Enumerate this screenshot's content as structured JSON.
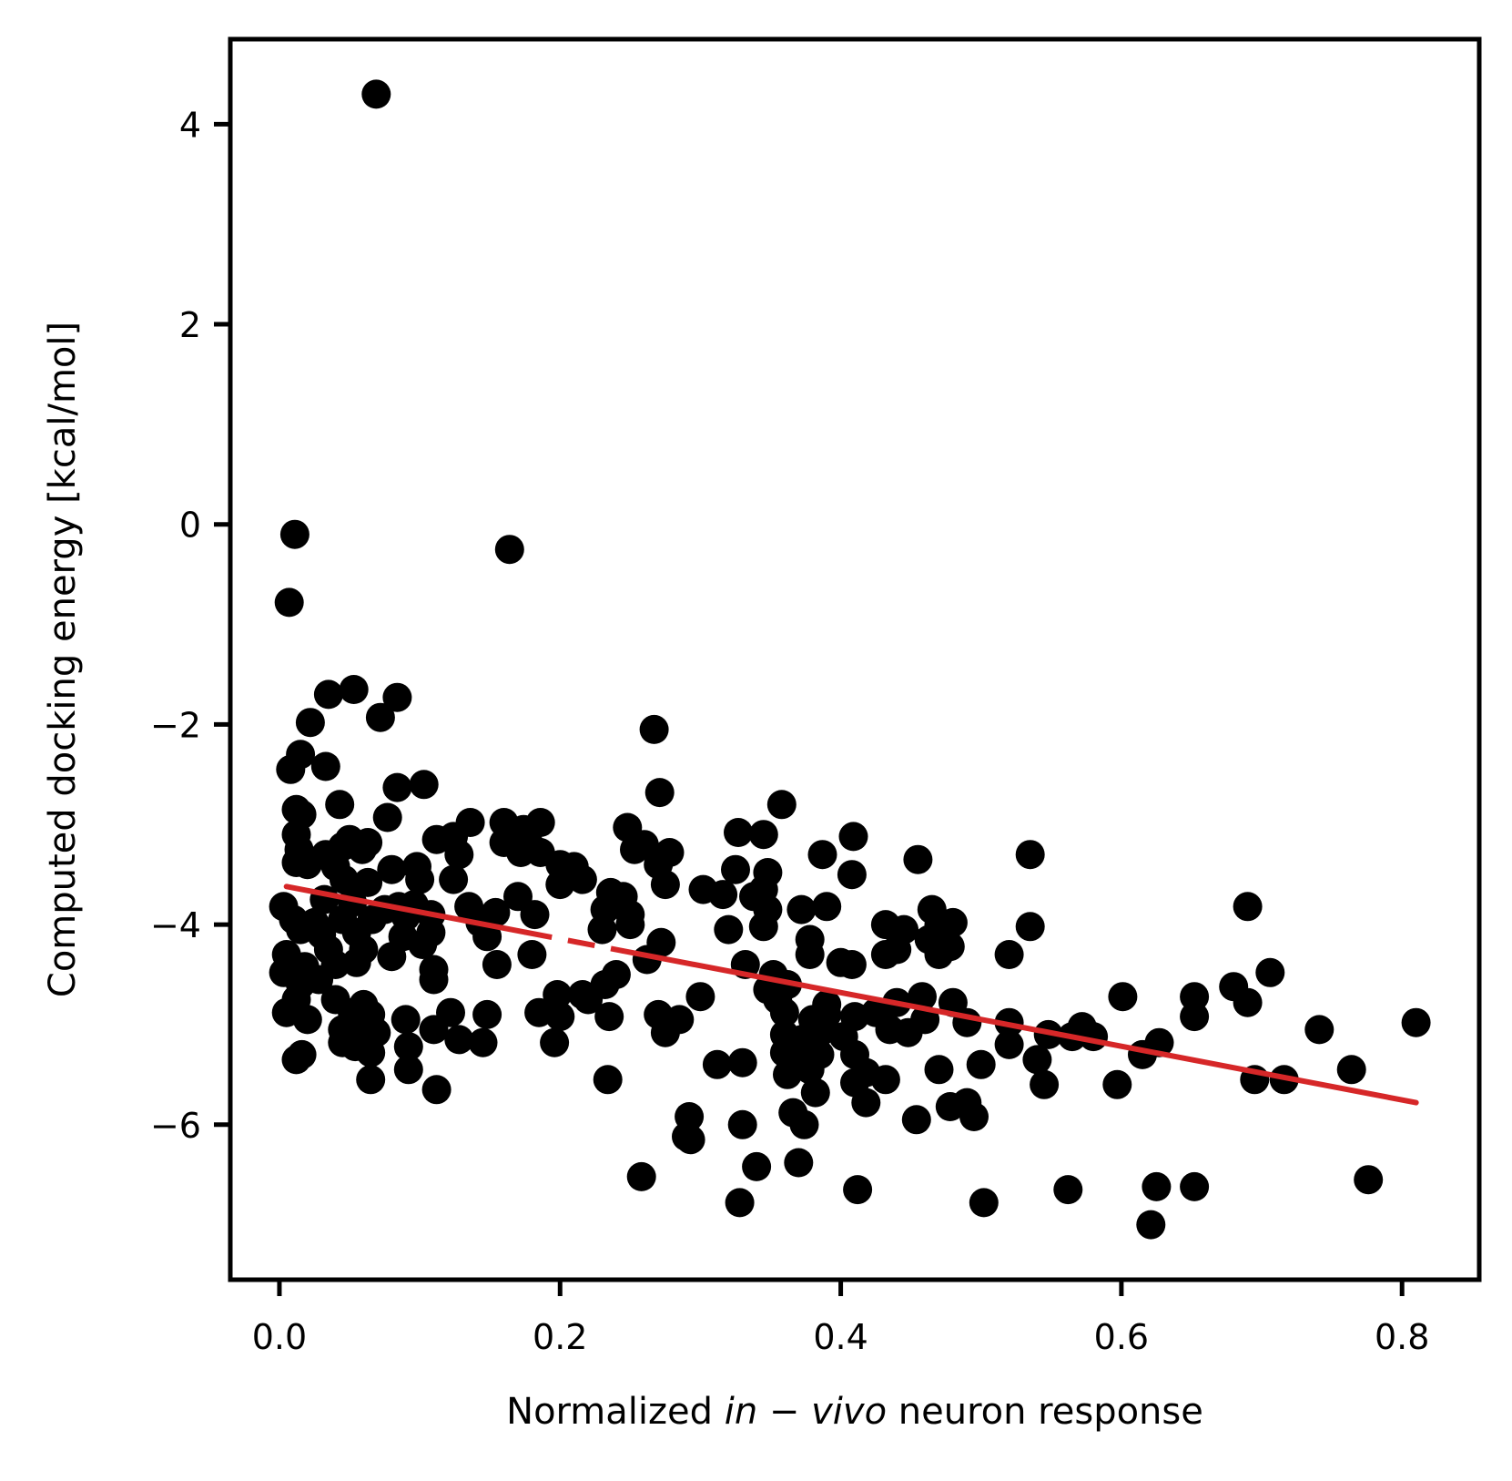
{
  "chart_data": {
    "type": "scatter",
    "xlabel": {
      "prefix": "Normalized ",
      "italic": "in − vivo",
      "suffix": " neuron response"
    },
    "ylabel": "Computed docking energy [kcal/mol]",
    "xlim": [
      -0.035,
      0.855
    ],
    "ylim": [
      -7.55,
      4.85
    ],
    "xticks": [
      0.0,
      0.2,
      0.4,
      0.6,
      0.8
    ],
    "xtick_labels": [
      "0.0",
      "0.2",
      "0.4",
      "0.6",
      "0.8"
    ],
    "yticks": [
      4,
      2,
      0,
      -2,
      -4,
      -6
    ],
    "ytick_labels": [
      "4",
      "2",
      "0",
      "−2",
      "−4",
      "−6"
    ],
    "grid": false,
    "legend": "none",
    "colors": {
      "points": "#000000",
      "trend": "#d62728"
    },
    "trend_line": {
      "x_start": 0.005,
      "y_start": -3.62,
      "x_end": 0.81,
      "y_end": -5.78,
      "dashed_x_range": [
        0.175,
        0.245
      ]
    },
    "points": [
      [
        0.069,
        4.3
      ],
      [
        0.011,
        -0.1
      ],
      [
        0.164,
        -0.25
      ],
      [
        0.007,
        -0.78
      ],
      [
        0.035,
        -1.7
      ],
      [
        0.053,
        -1.65
      ],
      [
        0.084,
        -1.73
      ],
      [
        0.072,
        -1.93
      ],
      [
        0.022,
        -1.98
      ],
      [
        0.267,
        -2.05
      ],
      [
        0.015,
        -2.3
      ],
      [
        0.033,
        -2.42
      ],
      [
        0.008,
        -2.45
      ],
      [
        0.084,
        -2.63
      ],
      [
        0.103,
        -2.6
      ],
      [
        0.271,
        -2.68
      ],
      [
        0.043,
        -2.8
      ],
      [
        0.012,
        -2.85
      ],
      [
        0.016,
        -2.9
      ],
      [
        0.077,
        -2.93
      ],
      [
        0.136,
        -2.98
      ],
      [
        0.16,
        -2.98
      ],
      [
        0.186,
        -2.98
      ],
      [
        0.174,
        -3.05
      ],
      [
        0.248,
        -3.03
      ],
      [
        0.327,
        -3.08
      ],
      [
        0.345,
        -3.1
      ],
      [
        0.409,
        -3.12
      ],
      [
        0.358,
        -2.8
      ],
      [
        0.012,
        -3.1
      ],
      [
        0.05,
        -3.15
      ],
      [
        0.063,
        -3.18
      ],
      [
        0.112,
        -3.15
      ],
      [
        0.124,
        -3.12
      ],
      [
        0.16,
        -3.18
      ],
      [
        0.178,
        -3.2
      ],
      [
        0.26,
        -3.2
      ],
      [
        0.014,
        -3.25
      ],
      [
        0.033,
        -3.3
      ],
      [
        0.045,
        -3.22
      ],
      [
        0.059,
        -3.25
      ],
      [
        0.128,
        -3.3
      ],
      [
        0.172,
        -3.28
      ],
      [
        0.186,
        -3.28
      ],
      [
        0.253,
        -3.25
      ],
      [
        0.278,
        -3.28
      ],
      [
        0.387,
        -3.3
      ],
      [
        0.455,
        -3.35
      ],
      [
        0.535,
        -3.3
      ],
      [
        0.012,
        -3.38
      ],
      [
        0.02,
        -3.4
      ],
      [
        0.04,
        -3.42
      ],
      [
        0.08,
        -3.45
      ],
      [
        0.098,
        -3.42
      ],
      [
        0.2,
        -3.4
      ],
      [
        0.21,
        -3.42
      ],
      [
        0.27,
        -3.4
      ],
      [
        0.325,
        -3.45
      ],
      [
        0.348,
        -3.48
      ],
      [
        0.408,
        -3.5
      ],
      [
        0.046,
        -3.55
      ],
      [
        0.063,
        -3.58
      ],
      [
        0.1,
        -3.55
      ],
      [
        0.124,
        -3.55
      ],
      [
        0.2,
        -3.6
      ],
      [
        0.216,
        -3.55
      ],
      [
        0.275,
        -3.6
      ],
      [
        0.302,
        -3.65
      ],
      [
        0.316,
        -3.7
      ],
      [
        0.345,
        -3.65
      ],
      [
        0.338,
        -3.72
      ],
      [
        0.236,
        -3.68
      ],
      [
        0.245,
        -3.72
      ],
      [
        0.003,
        -3.82
      ],
      [
        0.032,
        -3.75
      ],
      [
        0.052,
        -3.78
      ],
      [
        0.075,
        -3.85
      ],
      [
        0.085,
        -3.82
      ],
      [
        0.096,
        -3.8
      ],
      [
        0.135,
        -3.82
      ],
      [
        0.154,
        -3.88
      ],
      [
        0.17,
        -3.72
      ],
      [
        0.182,
        -3.9
      ],
      [
        0.232,
        -3.85
      ],
      [
        0.25,
        -3.9
      ],
      [
        0.348,
        -3.85
      ],
      [
        0.372,
        -3.85
      ],
      [
        0.39,
        -3.82
      ],
      [
        0.465,
        -3.85
      ],
      [
        0.69,
        -3.82
      ],
      [
        0.01,
        -3.95
      ],
      [
        0.025,
        -3.98
      ],
      [
        0.045,
        -3.95
      ],
      [
        0.066,
        -3.95
      ],
      [
        0.09,
        -3.92
      ],
      [
        0.108,
        -3.9
      ],
      [
        0.143,
        -3.98
      ],
      [
        0.25,
        -4.0
      ],
      [
        0.345,
        -4.02
      ],
      [
        0.432,
        -4.0
      ],
      [
        0.445,
        -4.05
      ],
      [
        0.47,
        -4.0
      ],
      [
        0.48,
        -3.98
      ],
      [
        0.535,
        -4.02
      ],
      [
        0.015,
        -4.05
      ],
      [
        0.03,
        -4.1
      ],
      [
        0.055,
        -4.08
      ],
      [
        0.088,
        -4.12
      ],
      [
        0.108,
        -4.08
      ],
      [
        0.148,
        -4.12
      ],
      [
        0.23,
        -4.05
      ],
      [
        0.32,
        -4.05
      ],
      [
        0.378,
        -4.15
      ],
      [
        0.472,
        -4.12
      ],
      [
        0.463,
        -4.15
      ],
      [
        0.005,
        -4.3
      ],
      [
        0.035,
        -4.25
      ],
      [
        0.06,
        -4.25
      ],
      [
        0.08,
        -4.32
      ],
      [
        0.102,
        -4.2
      ],
      [
        0.18,
        -4.3
      ],
      [
        0.272,
        -4.18
      ],
      [
        0.332,
        -4.4
      ],
      [
        0.378,
        -4.3
      ],
      [
        0.432,
        -4.3
      ],
      [
        0.44,
        -4.25
      ],
      [
        0.47,
        -4.3
      ],
      [
        0.478,
        -4.22
      ],
      [
        0.52,
        -4.3
      ],
      [
        0.003,
        -4.48
      ],
      [
        0.018,
        -4.42
      ],
      [
        0.04,
        -4.4
      ],
      [
        0.055,
        -4.38
      ],
      [
        0.11,
        -4.45
      ],
      [
        0.155,
        -4.4
      ],
      [
        0.24,
        -4.5
      ],
      [
        0.262,
        -4.35
      ],
      [
        0.352,
        -4.5
      ],
      [
        0.4,
        -4.38
      ],
      [
        0.408,
        -4.4
      ],
      [
        0.015,
        -4.6
      ],
      [
        0.028,
        -4.55
      ],
      [
        0.11,
        -4.55
      ],
      [
        0.216,
        -4.7
      ],
      [
        0.232,
        -4.6
      ],
      [
        0.348,
        -4.65
      ],
      [
        0.362,
        -4.6
      ],
      [
        0.706,
        -4.48
      ],
      [
        0.012,
        -4.75
      ],
      [
        0.04,
        -4.75
      ],
      [
        0.06,
        -4.8
      ],
      [
        0.198,
        -4.7
      ],
      [
        0.22,
        -4.75
      ],
      [
        0.3,
        -4.72
      ],
      [
        0.355,
        -4.75
      ],
      [
        0.39,
        -4.8
      ],
      [
        0.44,
        -4.78
      ],
      [
        0.458,
        -4.72
      ],
      [
        0.48,
        -4.78
      ],
      [
        0.601,
        -4.72
      ],
      [
        0.652,
        -4.72
      ],
      [
        0.68,
        -4.62
      ],
      [
        0.69,
        -4.78
      ],
      [
        0.005,
        -4.88
      ],
      [
        0.02,
        -4.95
      ],
      [
        0.052,
        -4.88
      ],
      [
        0.065,
        -4.9
      ],
      [
        0.09,
        -4.95
      ],
      [
        0.122,
        -4.88
      ],
      [
        0.148,
        -4.9
      ],
      [
        0.185,
        -4.88
      ],
      [
        0.2,
        -4.92
      ],
      [
        0.235,
        -4.92
      ],
      [
        0.27,
        -4.9
      ],
      [
        0.285,
        -4.95
      ],
      [
        0.36,
        -4.88
      ],
      [
        0.38,
        -4.95
      ],
      [
        0.39,
        -4.9
      ],
      [
        0.41,
        -4.92
      ],
      [
        0.425,
        -4.88
      ],
      [
        0.46,
        -4.95
      ],
      [
        0.49,
        -4.98
      ],
      [
        0.52,
        -4.98
      ],
      [
        0.652,
        -4.92
      ],
      [
        0.045,
        -5.05
      ],
      [
        0.058,
        -5.12
      ],
      [
        0.069,
        -5.08
      ],
      [
        0.11,
        -5.05
      ],
      [
        0.128,
        -5.15
      ],
      [
        0.145,
        -5.18
      ],
      [
        0.196,
        -5.18
      ],
      [
        0.275,
        -5.08
      ],
      [
        0.36,
        -5.1
      ],
      [
        0.372,
        -5.15
      ],
      [
        0.385,
        -5.08
      ],
      [
        0.402,
        -5.12
      ],
      [
        0.435,
        -5.05
      ],
      [
        0.448,
        -5.08
      ],
      [
        0.52,
        -5.2
      ],
      [
        0.548,
        -5.1
      ],
      [
        0.565,
        -5.12
      ],
      [
        0.572,
        -5.02
      ],
      [
        0.58,
        -5.12
      ],
      [
        0.627,
        -5.18
      ],
      [
        0.741,
        -5.05
      ],
      [
        0.81,
        -4.98
      ],
      [
        0.012,
        -5.35
      ],
      [
        0.016,
        -5.3
      ],
      [
        0.045,
        -5.18
      ],
      [
        0.054,
        -5.22
      ],
      [
        0.065,
        -5.28
      ],
      [
        0.092,
        -5.22
      ],
      [
        0.312,
        -5.4
      ],
      [
        0.33,
        -5.38
      ],
      [
        0.36,
        -5.28
      ],
      [
        0.375,
        -5.32
      ],
      [
        0.385,
        -5.3
      ],
      [
        0.41,
        -5.3
      ],
      [
        0.5,
        -5.4
      ],
      [
        0.54,
        -5.35
      ],
      [
        0.615,
        -5.3
      ],
      [
        0.092,
        -5.45
      ],
      [
        0.362,
        -5.5
      ],
      [
        0.378,
        -5.45
      ],
      [
        0.418,
        -5.48
      ],
      [
        0.47,
        -5.45
      ],
      [
        0.764,
        -5.45
      ],
      [
        0.065,
        -5.55
      ],
      [
        0.112,
        -5.65
      ],
      [
        0.234,
        -5.55
      ],
      [
        0.41,
        -5.58
      ],
      [
        0.432,
        -5.55
      ],
      [
        0.545,
        -5.6
      ],
      [
        0.597,
        -5.6
      ],
      [
        0.695,
        -5.55
      ],
      [
        0.716,
        -5.55
      ],
      [
        0.382,
        -5.68
      ],
      [
        0.418,
        -5.78
      ],
      [
        0.49,
        -5.78
      ],
      [
        0.478,
        -5.82
      ],
      [
        0.366,
        -5.88
      ],
      [
        0.292,
        -5.92
      ],
      [
        0.495,
        -5.92
      ],
      [
        0.454,
        -5.95
      ],
      [
        0.33,
        -6.0
      ],
      [
        0.374,
        -6.0
      ],
      [
        0.29,
        -6.12
      ],
      [
        0.293,
        -6.15
      ],
      [
        0.34,
        -6.42
      ],
      [
        0.37,
        -6.38
      ],
      [
        0.258,
        -6.52
      ],
      [
        0.412,
        -6.65
      ],
      [
        0.562,
        -6.65
      ],
      [
        0.625,
        -6.62
      ],
      [
        0.652,
        -6.62
      ],
      [
        0.776,
        -6.55
      ],
      [
        0.328,
        -6.78
      ],
      [
        0.502,
        -6.78
      ],
      [
        0.621,
        -7.0
      ]
    ]
  }
}
